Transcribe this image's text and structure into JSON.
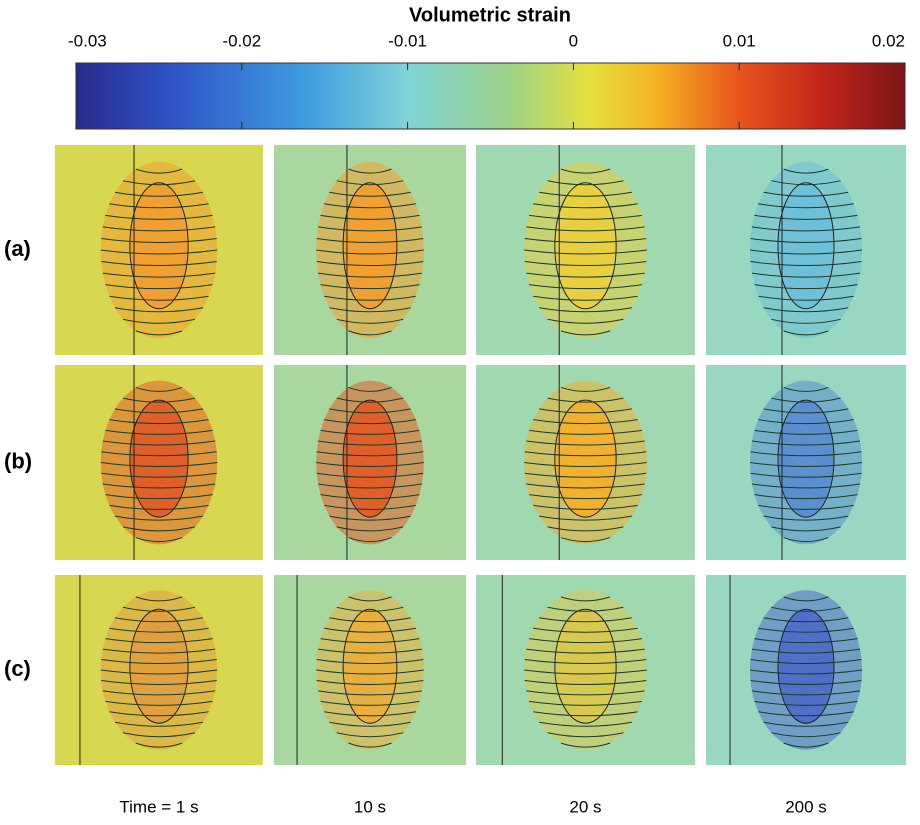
{
  "colorbar": {
    "title": "Volumetric strain",
    "lim": [
      -0.03,
      0.02
    ],
    "ticks": [
      -0.03,
      -0.02,
      -0.01,
      0,
      0.01,
      0.02
    ]
  },
  "rows": [
    "(a)",
    "(b)",
    "(c)"
  ],
  "columns": [
    "Time = 1 s",
    "10 s",
    "20 s",
    "200 s"
  ]
}
